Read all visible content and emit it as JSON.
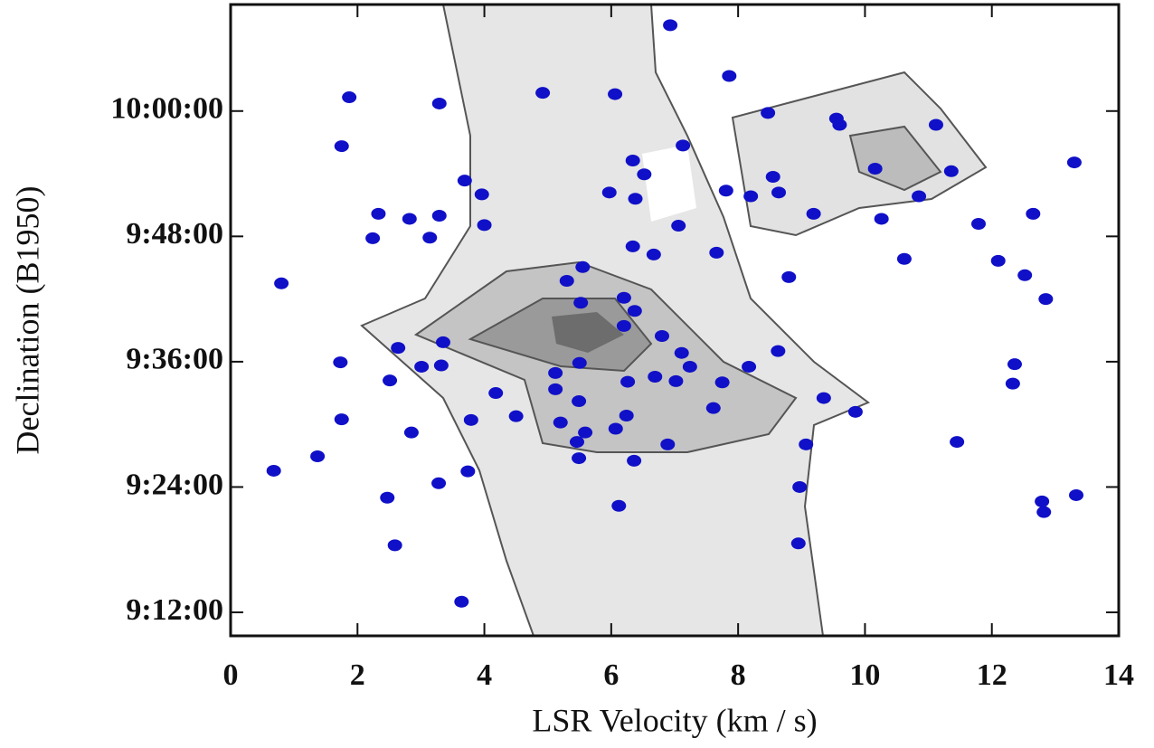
{
  "chart_data": {
    "type": "scatter",
    "xlabel": "LSR Velocity (km / s)",
    "ylabel": "Declination (B1950)",
    "xlim": [
      0,
      14
    ],
    "xticks": [
      0,
      2,
      4,
      6,
      8,
      10,
      12,
      14
    ],
    "ylim": [
      9.1625,
      10.17
    ],
    "yticks": [
      {
        "value": 9.2,
        "label": "9:12:00"
      },
      {
        "value": 9.4,
        "label": "9:24:00"
      },
      {
        "value": 9.6,
        "label": "9:36:00"
      },
      {
        "value": 9.8,
        "label": "9:48:00"
      },
      {
        "value": 10.0,
        "label": "10:00:00"
      }
    ],
    "color": "#1010c8",
    "x": [
      6.93,
      7.86,
      3.29,
      4.92,
      6.06,
      1.87,
      1.75,
      8.47,
      9.55,
      9.6,
      11.12,
      7.13,
      6.34,
      6.52,
      10.16,
      11.36,
      13.3,
      8.55,
      5.97,
      7.81,
      8.2,
      8.64,
      10.85,
      6.38,
      3.29,
      2.82,
      3.96,
      3.69,
      2.33,
      4.0,
      7.06,
      10.26,
      9.19,
      11.79,
      12.65,
      3.14,
      2.24,
      6.34,
      6.67,
      7.66,
      10.62,
      12.1,
      12.52,
      5.55,
      5.3,
      8.8,
      0.8,
      12.85,
      5.52,
      6.2,
      6.37,
      6.2,
      6.8,
      3.35,
      2.64,
      8.63,
      7.11,
      5.5,
      3.32,
      3.01,
      1.73,
      12.36,
      8.17,
      5.12,
      7.24,
      6.69,
      6.26,
      7.02,
      7.75,
      2.51,
      12.33,
      5.12,
      4.18,
      5.49,
      9.35,
      7.61,
      9.85,
      4.5,
      6.24,
      3.79,
      5.2,
      1.75,
      6.07,
      5.59,
      2.85,
      5.46,
      11.45,
      9.07,
      6.89,
      1.37,
      5.49,
      6.36,
      0.68,
      3.74,
      3.28,
      8.97,
      2.47,
      12.79,
      13.33,
      12.82,
      6.12,
      2.59,
      8.95,
      3.64
    ],
    "values": [
      10.137,
      10.056,
      10.012,
      10.029,
      10.027,
      10.022,
      9.944,
      9.997,
      9.988,
      9.978,
      9.978,
      9.945,
      9.921,
      9.899,
      9.908,
      9.904,
      9.918,
      9.895,
      9.87,
      9.873,
      9.864,
      9.87,
      9.864,
      9.86,
      9.833,
      9.828,
      9.867,
      9.889,
      9.836,
      9.818,
      9.817,
      9.828,
      9.836,
      9.82,
      9.836,
      9.798,
      9.797,
      9.784,
      9.771,
      9.774,
      9.764,
      9.761,
      9.738,
      9.751,
      9.729,
      9.735,
      9.725,
      9.7,
      9.694,
      9.702,
      9.681,
      9.657,
      9.641,
      9.631,
      9.622,
      9.617,
      9.614,
      9.598,
      9.594,
      9.592,
      9.599,
      9.596,
      9.592,
      9.582,
      9.592,
      9.576,
      9.568,
      9.569,
      9.567,
      9.57,
      9.565,
      9.556,
      9.55,
      9.537,
      9.542,
      9.526,
      9.52,
      9.513,
      9.514,
      9.507,
      9.503,
      9.508,
      9.493,
      9.487,
      9.487,
      9.472,
      9.472,
      9.468,
      9.468,
      9.449,
      9.446,
      9.442,
      9.426,
      9.425,
      9.406,
      9.4,
      9.383,
      9.377,
      9.387,
      9.36,
      9.37,
      9.307,
      9.31,
      9.217
    ]
  }
}
